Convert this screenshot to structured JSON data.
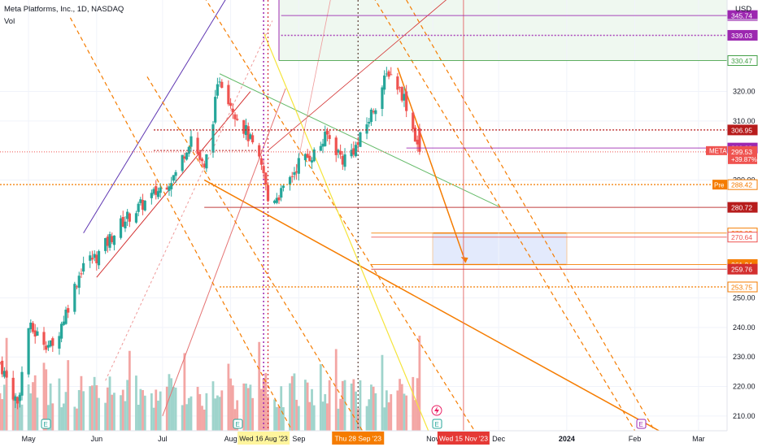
{
  "header": {
    "title": "Meta Platforms, Inc., 1D, NASDAQ",
    "indicator": "Vol",
    "currency": "USD"
  },
  "colors": {
    "up": "#26a69a",
    "down": "#ef5350",
    "vol_up": "#9fd4cc",
    "vol_down": "#f3a6a4",
    "orange": "#f57c00",
    "purple": "#9c27b0",
    "yellow": "#f5e43a",
    "green": "#43a047",
    "red": "#d32f2f",
    "dark_red": "#b71c1c"
  },
  "chart_data": {
    "type": "candlestick",
    "y_range": [
      205,
      351
    ],
    "y_ticks": [
      "320.00",
      "310.00",
      "290.00",
      "250.00",
      "240.00",
      "230.00",
      "220.00",
      "210.00"
    ],
    "y_tick_values": [
      320,
      310,
      290,
      250,
      240,
      230,
      220,
      210
    ],
    "x_ticks": [
      {
        "label": "May",
        "date": "2023-05-01"
      },
      {
        "label": "Jun",
        "date": "2023-06-01"
      },
      {
        "label": "Jul",
        "date": "2023-07-01"
      },
      {
        "label": "Aug",
        "date": "2023-08-01"
      },
      {
        "label": "Sep",
        "date": "2023-09-01"
      },
      {
        "label": "Nov",
        "date": "2023-11-01"
      },
      {
        "label": "Dec",
        "date": "2023-12-01"
      },
      {
        "label": "2024",
        "date": "2024-01-01"
      },
      {
        "label": "Feb",
        "date": "2024-02-01"
      },
      {
        "label": "Mar",
        "date": "2024-03-01"
      }
    ],
    "x_range": [
      "2023-04-18",
      "2024-03-14"
    ],
    "date_flags": [
      {
        "label": "Wed 16 Aug '23",
        "date": "2023-08-16",
        "style": "yellow"
      },
      {
        "label": "Thu 28 Sep '23",
        "date": "2023-09-28",
        "style": "orange"
      },
      {
        "label": "Wed 15 Nov '23",
        "date": "2023-11-15",
        "style": "red"
      }
    ],
    "price_levels": [
      {
        "value": 345.74,
        "label": "345.74",
        "color": "#9c27b0",
        "style": "solid"
      },
      {
        "value": 339.03,
        "label": "339.03",
        "color": "#9c27b0",
        "style": "dotted"
      },
      {
        "value": 330.47,
        "label": "330.47",
        "color": "#43a047",
        "style": "solid"
      },
      {
        "value": 306.95,
        "label": "306.95",
        "color": "#b71c1c",
        "style": "dotted"
      },
      {
        "value": 300.83,
        "label": "300.83",
        "color": "#9c27b0",
        "style": "solid"
      },
      {
        "value": 288.42,
        "label": "288.42",
        "color": "#f57c00",
        "style": "dotted"
      },
      {
        "value": 280.72,
        "label": "280.72",
        "color": "#b71c1c",
        "style": "solid"
      },
      {
        "value": 272.02,
        "label": "272.02",
        "color": "#f57c00",
        "style": "solid"
      },
      {
        "value": 270.64,
        "label": "270.64",
        "color": "#ef5350",
        "style": "solid"
      },
      {
        "value": 261.34,
        "label": "261.34",
        "color": "#f57c00",
        "style": "solid"
      },
      {
        "value": 259.76,
        "label": "259.76",
        "color": "#d32f2f",
        "style": "solid"
      },
      {
        "value": 253.75,
        "label": "253.75",
        "color": "#f57c00",
        "style": "dotted"
      }
    ],
    "current": {
      "symbol": "META",
      "price": "299.53",
      "change": "+39.87%",
      "value": 299.53
    },
    "premarket": {
      "label": "Pre",
      "price": "288.42"
    },
    "anchors": [
      {
        "date": "2023-04-18",
        "price": 228.0
      },
      {
        "date": "2023-04-26",
        "price": 214.0
      },
      {
        "date": "2023-05-01",
        "price": 240.0
      },
      {
        "date": "2023-05-12",
        "price": 233.0
      },
      {
        "date": "2023-05-26",
        "price": 262.0
      },
      {
        "date": "2023-06-01",
        "price": 264.0
      },
      {
        "date": "2023-06-13",
        "price": 276.0
      },
      {
        "date": "2023-06-27",
        "price": 285.0
      },
      {
        "date": "2023-07-07",
        "price": 292.0
      },
      {
        "date": "2023-07-14",
        "price": 305.0
      },
      {
        "date": "2023-07-20",
        "price": 293.0
      },
      {
        "date": "2023-07-27",
        "price": 325.0
      },
      {
        "date": "2023-08-03",
        "price": 313.0
      },
      {
        "date": "2023-08-09",
        "price": 305.0
      },
      {
        "date": "2023-08-16",
        "price": 292.0
      },
      {
        "date": "2023-08-18",
        "price": 283.0
      },
      {
        "date": "2023-08-25",
        "price": 286.0
      },
      {
        "date": "2023-09-01",
        "price": 296.0
      },
      {
        "date": "2023-09-08",
        "price": 299.0
      },
      {
        "date": "2023-09-14",
        "price": 305.0
      },
      {
        "date": "2023-09-21",
        "price": 297.0
      },
      {
        "date": "2023-09-28",
        "price": 302.0
      },
      {
        "date": "2023-10-06",
        "price": 316.0
      },
      {
        "date": "2023-10-12",
        "price": 327.0
      },
      {
        "date": "2023-10-19",
        "price": 318.0
      },
      {
        "date": "2023-10-26",
        "price": 299.53
      }
    ],
    "volume_range": [
      0,
      40
    ]
  },
  "zones": [
    {
      "kind": "green-box",
      "x1": "2023-08-23",
      "x2": "2024-03-14",
      "y1": 330.47,
      "y2": 351
    },
    {
      "kind": "target-box",
      "x1": "2023-11-01",
      "x2": "2024-01-01",
      "y1": 261.34,
      "y2": 272.02
    }
  ]
}
